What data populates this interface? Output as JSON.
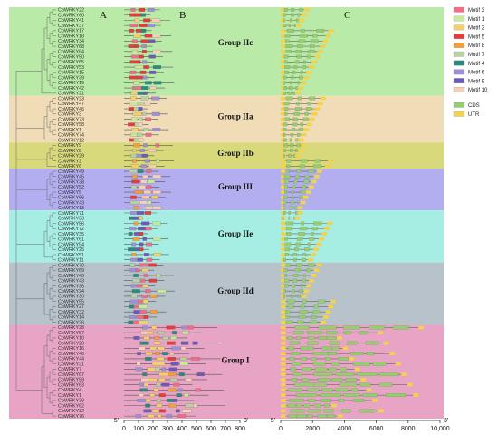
{
  "panels": {
    "a": "A",
    "b": "B",
    "c": "C"
  },
  "groups": [
    {
      "name": "Group IIc",
      "color": "#b9eaa7",
      "genes": [
        "CpWRKY22",
        "CpWRKY60",
        "CpWRKY41",
        "CpWRKY37",
        "CpWRKY17",
        "CpWRKY18",
        "CpWRKY34",
        "CpWRKY68",
        "CpWRKY64",
        "CpWRKY50",
        "CpWRKY65",
        "CpWRKY53",
        "CpWRKY15",
        "CpWRKY39",
        "CpWRKY19",
        "CpWRKY42",
        "CpWRKY21"
      ]
    },
    {
      "name": "Group IIa",
      "color": "#f0dcb6",
      "genes": [
        "CpWRKY23",
        "CpWRKY47",
        "CpWRKY46",
        "CpWRKY3",
        "CpWRKY73",
        "CpWRKY58",
        "CpWRKY1",
        "CpWRKY74",
        "CpWRKY12"
      ]
    },
    {
      "name": "Group IIb",
      "color": "#d8d97a",
      "genes": [
        "CpWRKY9",
        "CpWRKY8",
        "CpWRKY29",
        "CpWRKY2",
        "CpWRKY6"
      ]
    },
    {
      "name": "Group III",
      "color": "#b2aef0",
      "genes": [
        "CpWRKY49",
        "CpWRKY45",
        "CpWRKY38",
        "CpWRKY52",
        "CpWRKY5",
        "CpWRKY66",
        "CpWRKY43",
        "CpWRKY13"
      ]
    },
    {
      "name": "Group IIe",
      "color": "#a6eee3",
      "genes": [
        "CpWRKY71",
        "CpWRKY33",
        "CpWRKY56",
        "CpWRKY72",
        "CpWRKY35",
        "CpWRKY61",
        "CpWRKY54",
        "CpWRKY25",
        "CpWRKY51",
        "CpWRKY11"
      ]
    },
    {
      "name": "Group IId",
      "color": "#b7c2ca",
      "genes": [
        "CpWRKY70",
        "CpWRKY69",
        "CpWRKY40",
        "CpWRKY43",
        "CpWRKY36",
        "CpWRKY24",
        "CpWRKY30",
        "CpWRKY55",
        "CpWRKY27",
        "CpWRKY32",
        "CpWRKY14",
        "CpWRKY26"
      ]
    },
    {
      "name": "Group I",
      "color": "#e8a4c4",
      "genes": [
        "CpWRKY28",
        "CpWRKY57",
        "CpWRKY10",
        "CpWRKY20",
        "CpWRKY16",
        "CpWRKY48",
        "CpWRKY44",
        "CpWRKY31",
        "CpWRKY7",
        "CpWRKY67",
        "CpWRKY59",
        "CpWRKY63",
        "CpWRKY4",
        "CpWRKY1",
        "CpWRKY39",
        "CpWRKY62",
        "CpWRKY32",
        "CpWRKY76"
      ]
    }
  ],
  "motif_legend": [
    {
      "label": "Motif 3",
      "color": "#f06d88"
    },
    {
      "label": "Motif 1",
      "color": "#c7e99a"
    },
    {
      "label": "Motif 2",
      "color": "#f3d06a"
    },
    {
      "label": "Motif 5",
      "color": "#e63b3b"
    },
    {
      "label": "Motif 8",
      "color": "#f59f3b"
    },
    {
      "label": "Motif 7",
      "color": "#b9d3a0"
    },
    {
      "label": "Motif 4",
      "color": "#2a8a7e"
    },
    {
      "label": "Motif 6",
      "color": "#9e8fd8"
    },
    {
      "label": "Motif 9",
      "color": "#6f59b8"
    },
    {
      "label": "Motif 10",
      "color": "#f6cfb5"
    }
  ],
  "structure_legend": [
    {
      "label": "CDS",
      "color": "#93cf6c"
    },
    {
      "label": "UTR",
      "color": "#f3d24e"
    }
  ],
  "axis_b": {
    "start": "5'",
    "end": "3'",
    "ticks": [
      "0",
      "100",
      "200",
      "300",
      "400",
      "500",
      "600",
      "700",
      "800"
    ]
  },
  "axis_c": {
    "start": "5'",
    "end": "3'",
    "ticks": [
      "0",
      "2000",
      "4000",
      "6000",
      "8000",
      "10,000"
    ]
  }
}
